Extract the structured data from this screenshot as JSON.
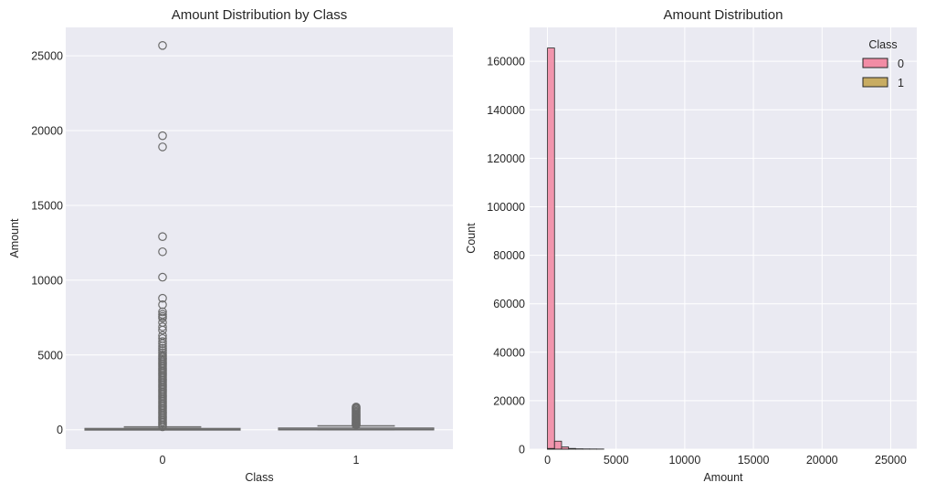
{
  "chart_data": [
    {
      "type": "box",
      "title": "Amount Distribution by Class",
      "xlabel": "Class",
      "ylabel": "Amount",
      "categories": [
        "0",
        "1"
      ],
      "ylim": [
        -1300,
        26900
      ],
      "yticks": [
        0,
        5000,
        10000,
        15000,
        20000,
        25000
      ],
      "ytick_labels": [
        "0",
        "5000",
        "10000",
        "15000",
        "20000",
        "25000"
      ],
      "grid": true,
      "boxes": [
        {
          "category": "0",
          "q1": 5,
          "median": 22,
          "q3": 77,
          "whisker_low": 0,
          "whisker_high": 185,
          "outliers": [
            25691,
            19656,
            18910,
            12910,
            11898,
            10199,
            8790,
            8360,
            7880,
            7712,
            7580,
            7470,
            7170,
            6880,
            6660,
            6300,
            6100,
            5900,
            5760,
            5600,
            5450,
            5300,
            5150,
            5000,
            4900,
            4800,
            4700,
            4600,
            4500,
            4400,
            4300,
            4200,
            4100,
            4000,
            3900,
            3800,
            3700,
            3600,
            3500,
            3400,
            3300,
            3200,
            3100,
            3000,
            2900,
            2800,
            2700,
            2600,
            2500,
            2400,
            2300,
            2200,
            2100,
            2000,
            1900,
            1800,
            1700,
            1600,
            1500,
            1400,
            1300,
            1200,
            1100,
            1000,
            900,
            800,
            700,
            600,
            500,
            400,
            300,
            200
          ]
        },
        {
          "category": "1",
          "q1": 1,
          "median": 9,
          "q3": 106,
          "whisker_low": 0,
          "whisker_high": 260,
          "outliers": [
            1520,
            1450,
            1380,
            1300,
            1220,
            1150,
            1080,
            1000,
            920,
            850,
            780,
            720,
            660,
            600,
            540,
            480,
            420,
            360,
            310
          ]
        }
      ]
    },
    {
      "type": "histogram",
      "title": "Amount Distribution",
      "xlabel": "Amount",
      "ylabel": "Count",
      "xlim": [
        -1300,
        26900
      ],
      "ylim": [
        0,
        174000
      ],
      "xticks": [
        0,
        5000,
        10000,
        15000,
        20000,
        25000
      ],
      "xtick_labels": [
        "0",
        "5000",
        "10000",
        "15000",
        "20000",
        "25000"
      ],
      "yticks": [
        0,
        20000,
        40000,
        60000,
        80000,
        100000,
        120000,
        140000,
        160000
      ],
      "ytick_labels": [
        "0",
        "20000",
        "40000",
        "60000",
        "80000",
        "100000",
        "120000",
        "140000",
        "160000"
      ],
      "bin_width": 513,
      "bins_start": 0,
      "grid": true,
      "legend": {
        "title": "Class",
        "placement": "top-right"
      },
      "series": [
        {
          "name": "0",
          "color": "#f28ca5",
          "counts": [
            165500,
            3300,
            900,
            300,
            150,
            100,
            80,
            60
          ]
        },
        {
          "name": "1",
          "color": "#c8ac62",
          "counts": [
            300,
            20,
            5,
            0,
            0,
            0,
            0,
            0
          ]
        }
      ]
    }
  ],
  "style": {
    "plot_bg": "#eaeaf2",
    "grid_color": "#ffffff",
    "box_fill": "#eaeaf2",
    "box_line": "#6b6b6b",
    "bar_edge": "#262626"
  }
}
